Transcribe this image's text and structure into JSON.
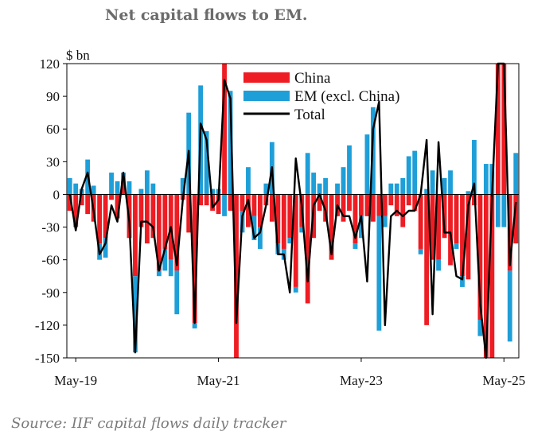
{
  "title": "Net capital flows to EM.",
  "source": "Source:  IIF capital flows daily tracker",
  "colors": {
    "china": "#ee1c23",
    "em_ex_china": "#1e9fd8",
    "total": "#000000"
  },
  "chart_data": {
    "type": "bar",
    "stacked": true,
    "ylabel": "$ bn",
    "ylim": [
      -150,
      120
    ],
    "yticks": [
      120,
      90,
      60,
      30,
      0,
      -30,
      -60,
      -90,
      -120,
      -150
    ],
    "xticks": [
      "May-19",
      "May-21",
      "May-23",
      "May-25"
    ],
    "legend_position": "top-center",
    "grid": false,
    "months": [
      "Apr-19",
      "May-19",
      "Jun-19",
      "Jul-19",
      "Aug-19",
      "Sep-19",
      "Oct-19",
      "Nov-19",
      "Dec-19",
      "Jan-20",
      "Feb-20",
      "Mar-20",
      "Apr-20",
      "May-20",
      "Jun-20",
      "Jul-20",
      "Aug-20",
      "Sep-20",
      "Oct-20",
      "Nov-20",
      "Dec-20",
      "Jan-21",
      "Feb-21",
      "Mar-21",
      "Apr-21",
      "May-21",
      "Jun-21",
      "Jul-21",
      "Aug-21",
      "Sep-21",
      "Oct-21",
      "Nov-21",
      "Dec-21",
      "Jan-22",
      "Feb-22",
      "Mar-22",
      "Apr-22",
      "May-22",
      "Jun-22",
      "Jul-22",
      "Aug-22",
      "Sep-22",
      "Oct-22",
      "Nov-22",
      "Dec-22",
      "Jan-23",
      "Feb-23",
      "Mar-23",
      "Apr-23",
      "May-23",
      "Jun-23",
      "Jul-23",
      "Aug-23",
      "Sep-23",
      "Oct-23",
      "Nov-23",
      "Dec-23",
      "Jan-24",
      "Feb-24",
      "Mar-24",
      "Apr-24",
      "May-24",
      "Jun-24",
      "Jul-24",
      "Aug-24",
      "Sep-24",
      "Oct-24",
      "Nov-24",
      "Dec-24",
      "Jan-25",
      "Feb-25",
      "Mar-25",
      "Apr-25",
      "May-25",
      "Jun-25",
      "Jul-25"
    ],
    "series": [
      {
        "name": "China",
        "type": "bar",
        "values": [
          -15,
          -30,
          -10,
          -18,
          -25,
          -45,
          -40,
          -5,
          -22,
          12,
          -40,
          -75,
          -30,
          -45,
          -40,
          -70,
          -50,
          -60,
          -70,
          -5,
          -35,
          -118,
          -10,
          -10,
          -15,
          -18,
          120,
          -15,
          -150,
          -15,
          -30,
          -20,
          -30,
          -10,
          -25,
          -45,
          -50,
          -40,
          -85,
          -30,
          -100,
          -40,
          -15,
          -25,
          -60,
          -20,
          -25,
          -15,
          -45,
          -20,
          -20,
          -25,
          -20,
          -20,
          -10,
          -20,
          -30,
          -10,
          -15,
          -50,
          -120,
          -60,
          -60,
          -40,
          -65,
          -45,
          -75,
          -78,
          -10,
          -115,
          -150,
          -150,
          120,
          120,
          -70,
          -45
        ]
      },
      {
        "name": "EM (excl. China)",
        "type": "bar",
        "values": [
          15,
          10,
          5,
          32,
          8,
          -15,
          -18,
          20,
          12,
          8,
          12,
          -70,
          5,
          22,
          10,
          -5,
          -20,
          -15,
          -40,
          15,
          75,
          -5,
          100,
          58,
          5,
          5,
          -20,
          95,
          -5,
          -20,
          25,
          -22,
          -20,
          10,
          48,
          -10,
          -10,
          -5,
          -5,
          -5,
          38,
          20,
          10,
          15,
          0,
          10,
          25,
          45,
          -5,
          -20,
          55,
          80,
          -105,
          -10,
          10,
          10,
          15,
          35,
          40,
          -5,
          5,
          22,
          -10,
          15,
          22,
          -5,
          -10,
          3,
          50,
          -15,
          28,
          28,
          -30,
          -30,
          -65,
          38
        ]
      },
      {
        "name": "Total",
        "type": "line",
        "values": [
          0,
          -33,
          5,
          20,
          -15,
          -55,
          -45,
          -10,
          -25,
          20,
          -25,
          -145,
          -25,
          -25,
          -30,
          -70,
          -50,
          -30,
          -65,
          -5,
          40,
          -118,
          65,
          50,
          -12,
          -5,
          105,
          88,
          -118,
          -20,
          -5,
          -40,
          -35,
          -10,
          25,
          -55,
          -55,
          -90,
          33,
          -10,
          -80,
          -10,
          0,
          -15,
          -55,
          -10,
          -20,
          -20,
          -40,
          -20,
          -80,
          60,
          85,
          -120,
          -20,
          -15,
          -20,
          -15,
          -15,
          0,
          50,
          -110,
          48,
          -35,
          -35,
          -75,
          -78,
          -10,
          10,
          -100,
          -150,
          0,
          120,
          120,
          -65,
          -7
        ]
      }
    ]
  },
  "legend": [
    {
      "label": "China",
      "kind": "bar",
      "color": "#ee1c23"
    },
    {
      "label": "EM (excl. China)",
      "kind": "bar",
      "color": "#1e9fd8"
    },
    {
      "label": "Total",
      "kind": "line",
      "color": "#000000"
    }
  ]
}
